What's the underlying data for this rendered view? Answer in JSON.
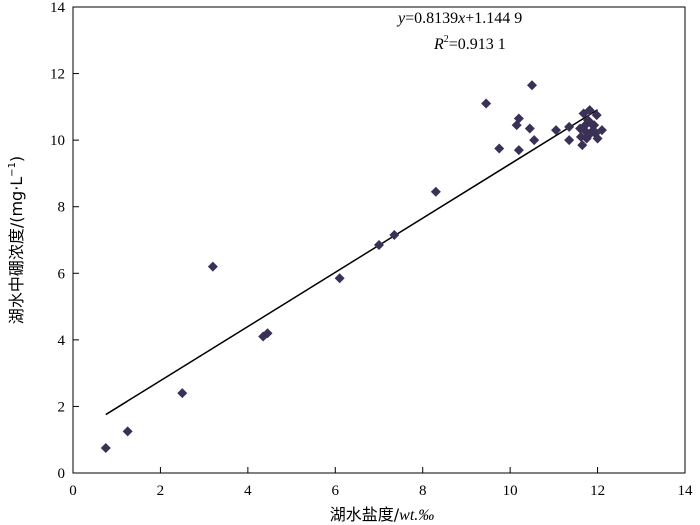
{
  "chart_data": {
    "type": "scatter",
    "title": "",
    "xlabel": {
      "prefix": "湖水盐度/",
      "unit": "wt.‰"
    },
    "ylabel": {
      "prefix": "湖水中硼浓度/(mg·L",
      "sup": "−1",
      "suffix": ")"
    },
    "xlim": [
      0,
      14
    ],
    "ylim": [
      0,
      14
    ],
    "xticks": [
      0,
      2,
      4,
      6,
      8,
      10,
      12,
      14
    ],
    "yticks": [
      0,
      2,
      4,
      6,
      8,
      10,
      12,
      14
    ],
    "xtick_labels": [
      "0",
      "2",
      "4",
      "6",
      "8",
      "10",
      "12",
      "14"
    ],
    "ytick_labels": [
      "0",
      "2",
      "4",
      "6",
      "8",
      "10",
      "12",
      "14"
    ],
    "grid": false,
    "marker": "diamond",
    "marker_color": "#3b3156",
    "line_color": "#000000",
    "series": [
      {
        "x": [
          0.75,
          1.25,
          2.5,
          3.2,
          4.35,
          4.45,
          6.1,
          7.0,
          7.35,
          8.3,
          9.45,
          9.75,
          10.15,
          10.2,
          10.2,
          10.45,
          10.5,
          10.55,
          11.05,
          11.35,
          11.35,
          11.6,
          11.62,
          11.65,
          11.68,
          11.7,
          11.72,
          11.75,
          11.78,
          11.8,
          11.82,
          11.85,
          11.9,
          11.92,
          11.95,
          11.98,
          12.0,
          12.1
        ],
        "y": [
          0.75,
          1.25,
          2.4,
          6.2,
          4.1,
          4.2,
          5.85,
          6.85,
          7.15,
          8.45,
          11.1,
          9.75,
          10.45,
          10.65,
          9.7,
          10.35,
          11.65,
          10.0,
          10.3,
          10.4,
          10.0,
          10.35,
          10.1,
          9.85,
          10.8,
          10.3,
          10.45,
          10.05,
          10.6,
          10.15,
          10.9,
          10.5,
          10.3,
          10.45,
          10.2,
          10.75,
          10.05,
          10.3
        ]
      }
    ],
    "trendline": {
      "slope": 0.8139,
      "intercept": 1.1449,
      "x_range": [
        0.75,
        12.0
      ],
      "equation": {
        "y": "y",
        "eq1": "=0.8139",
        "x": "x",
        "eq2": "+1.144 9"
      },
      "r2": {
        "r": "R",
        "sup": "2",
        "value": "=0.913 1"
      }
    }
  }
}
